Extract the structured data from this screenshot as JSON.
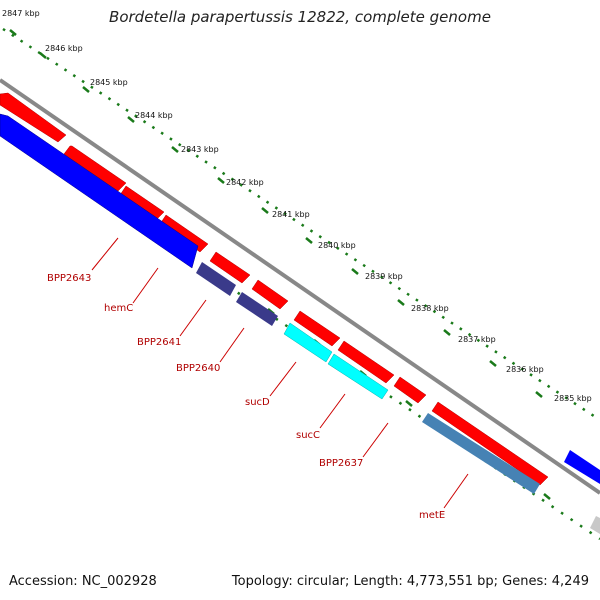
{
  "title": "Bordetella parapertussis 12822, complete genome",
  "footer": {
    "accession": "Accession: NC_002928",
    "summary": "Topology: circular; Length: 4,773,551 bp; Genes: 4,249"
  },
  "ruler": {
    "ticks": [
      "2847 kbp",
      "2846 kbp",
      "2845 kbp",
      "2844 kbp",
      "2843 kbp",
      "2842 kbp",
      "2841 kbp",
      "2840 kbp",
      "2839 kbp",
      "2838 kbp",
      "2837 kbp",
      "2836 kbp",
      "2835 kbp"
    ]
  },
  "genes": [
    {
      "label": "BPP2643"
    },
    {
      "label": "hemC"
    },
    {
      "label": "BPP2641"
    },
    {
      "label": "BPP2640"
    },
    {
      "label": "sucD"
    },
    {
      "label": "sucC"
    },
    {
      "label": "BPP2637"
    },
    {
      "label": "metE"
    }
  ],
  "colors": {
    "forward_cds": "#ff0000",
    "reverse_cds": "#0000ff",
    "navy_cds": "#3a3a8a",
    "cyan_cds": "#00ffff",
    "steel_cds": "#4682b4",
    "backbone": "#888888",
    "ruler_dots": "#1a7a1a",
    "label": "#b00000"
  }
}
